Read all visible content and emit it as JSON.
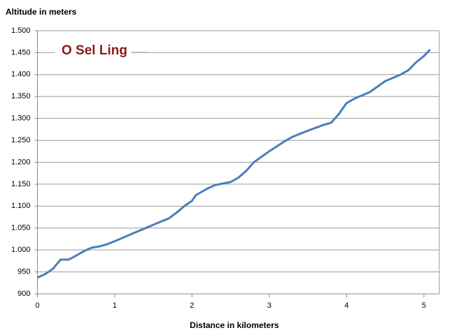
{
  "chart_data": {
    "type": "line",
    "title": "O Sel Ling",
    "y_label": "Altitude in meters",
    "x_label": "Distance in kilometers",
    "series": [
      {
        "name": "O Sel Ling",
        "color": "#4a7ebb",
        "x": [
          0,
          0.1,
          0.2,
          0.3,
          0.4,
          0.45,
          0.6,
          0.7,
          0.8,
          0.9,
          1.0,
          1.2,
          1.4,
          1.6,
          1.7,
          1.8,
          1.9,
          2.0,
          2.05,
          2.2,
          2.3,
          2.5,
          2.6,
          2.7,
          2.8,
          3.0,
          3.2,
          3.3,
          3.5,
          3.7,
          3.8,
          3.9,
          4.0,
          4.1,
          4.3,
          4.5,
          4.7,
          4.8,
          4.9,
          5.0,
          5.08
        ],
        "values": [
          937,
          945,
          957,
          978,
          978,
          982,
          997,
          1005,
          1008,
          1013,
          1020,
          1035,
          1050,
          1065,
          1072,
          1085,
          1100,
          1112,
          1125,
          1140,
          1148,
          1155,
          1165,
          1180,
          1200,
          1225,
          1248,
          1258,
          1272,
          1285,
          1290,
          1310,
          1335,
          1345,
          1360,
          1385,
          1400,
          1410,
          1428,
          1442,
          1457
        ]
      }
    ],
    "xlim": [
      0,
      5.2
    ],
    "xticks": [
      0,
      1,
      2,
      3,
      4,
      5
    ],
    "ylim": [
      900,
      1500
    ],
    "yticks": [
      900,
      950,
      {
        "value": 1000,
        "label": "1.000"
      },
      {
        "value": 1050,
        "label": "1.050"
      },
      {
        "value": 1100,
        "label": "1.100"
      },
      {
        "value": 1150,
        "label": "1.150"
      },
      {
        "value": 1200,
        "label": "1.200"
      },
      {
        "value": 1250,
        "label": "1.250"
      },
      {
        "value": 1300,
        "label": "1.300"
      },
      {
        "value": 1350,
        "label": "1.350"
      },
      {
        "value": 1400,
        "label": "1.400"
      },
      {
        "value": 1450,
        "label": "1.450"
      },
      {
        "value": 1500,
        "label": "1.500"
      }
    ],
    "grid": true
  }
}
